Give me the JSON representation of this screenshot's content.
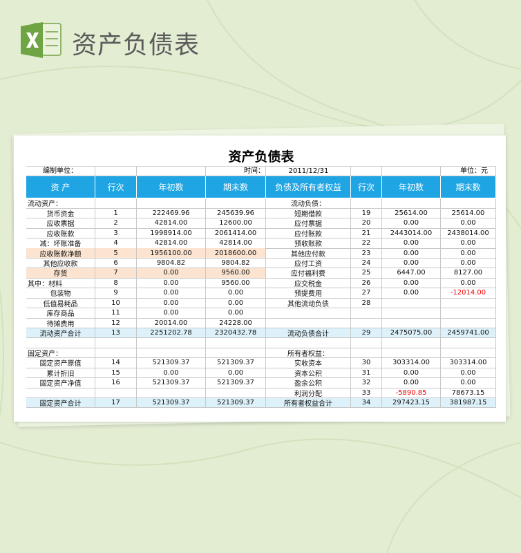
{
  "header": {
    "title": "资产负债表"
  },
  "sheet": {
    "title": "资产负债表",
    "info": {
      "unit_label": "编制单位：",
      "date_label": "时间：",
      "date": "2011/12/31",
      "currency": "单位：元"
    },
    "columns": [
      "资 产",
      "行次",
      "年初数",
      "期末数",
      "负债及所有者权益",
      "行次",
      "年初数",
      "期末数"
    ],
    "rows": [
      [
        "流动资产：",
        null,
        null,
        null,
        "流动负债：",
        null,
        null,
        null
      ],
      [
        "货币资金",
        "1",
        "222469.96",
        "245639.96",
        "短期借款",
        "19",
        "25614.00",
        "25614.00"
      ],
      [
        "应收票据",
        "2",
        "42814.00",
        "12600.00",
        "应付票据",
        "20",
        "0.00",
        "0.00"
      ],
      [
        "应收账款",
        "3",
        "1998914.00",
        "2061414.00",
        "应付账款",
        "21",
        "2443014.00",
        "2438014.00"
      ],
      [
        "减：坏账准备",
        "4",
        "42814.00",
        "42814.00",
        "预收账款",
        "22",
        "0.00",
        "0.00"
      ],
      [
        "应收账款净额",
        "5",
        "1956100.00",
        "2018600.00",
        "其他应付款",
        "23",
        "0.00",
        "0.00"
      ],
      [
        "其他应收款",
        "6",
        "9804.82",
        "9804.82",
        "应付工资",
        "24",
        "0.00",
        "0.00"
      ],
      [
        "存货",
        "7",
        "0.00",
        "9560.00",
        "应付福利费",
        "25",
        "6447.00",
        "8127.00"
      ],
      [
        "其中：材料",
        "8",
        "0.00",
        "9560.00",
        "应交税金",
        "26",
        "0.00",
        "0.00"
      ],
      [
        "包装物",
        "9",
        "0.00",
        "0.00",
        "预提费用",
        "27",
        "0.00",
        "-12014.00"
      ],
      [
        "低值易耗品",
        "10",
        "0.00",
        "0.00",
        "其他流动负债",
        "28",
        null,
        null
      ],
      [
        "库存商品",
        "11",
        "0.00",
        "0.00",
        null,
        null,
        null,
        null
      ],
      [
        "待摊费用",
        "12",
        "20014.00",
        "24228.00",
        null,
        null,
        null,
        null
      ],
      [
        "流动资产合计",
        "13",
        "2251202.78",
        "2320432.78",
        "流动负债合计",
        "29",
        "2475075.00",
        "2459741.00"
      ],
      [
        null,
        null,
        null,
        null,
        null,
        null,
        null,
        null
      ],
      [
        "固定资产：",
        null,
        null,
        null,
        "所有者权益：",
        null,
        null,
        null
      ],
      [
        "固定资产原值",
        "14",
        "521309.37",
        "521309.37",
        "实收资本",
        "30",
        "303314.00",
        "303314.00"
      ],
      [
        "累计折旧",
        "15",
        "0.00",
        "0.00",
        "资本公积",
        "31",
        "0.00",
        "0.00"
      ],
      [
        "固定资产净值",
        "16",
        "521309.37",
        "521309.37",
        "盈余公积",
        "32",
        "0.00",
        "0.00"
      ],
      [
        null,
        null,
        null,
        null,
        "利润分配",
        "33",
        "-5890.85",
        "78673.15"
      ],
      [
        "固定资产合计",
        "17",
        "521309.37",
        "521309.37",
        "所有者权益合计",
        "34",
        "297423.15",
        "381987.15"
      ]
    ]
  }
}
